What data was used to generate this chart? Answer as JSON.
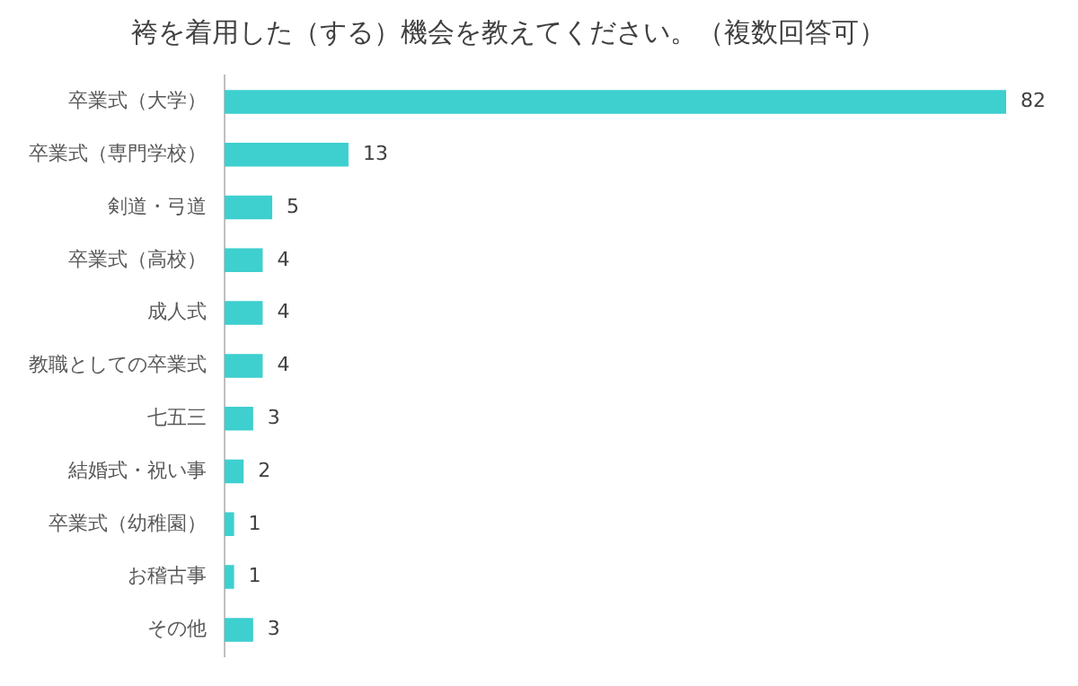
{
  "chart_data": {
    "type": "bar",
    "orientation": "horizontal",
    "title": "袴を着用した（する）機会を教えてください。（複数回答可）",
    "categories": [
      "卒業式（大学）",
      "卒業式（専門学校）",
      "剣道・弓道",
      "卒業式（高校）",
      "成人式",
      "教職としての卒業式",
      "七五三",
      "結婚式・祝い事",
      "卒業式（幼稚園）",
      "お稽古事",
      "その他"
    ],
    "values": [
      82,
      13,
      5,
      4,
      4,
      4,
      3,
      2,
      1,
      1,
      3
    ],
    "color": "#3ecfcf",
    "data_labels": true
  }
}
